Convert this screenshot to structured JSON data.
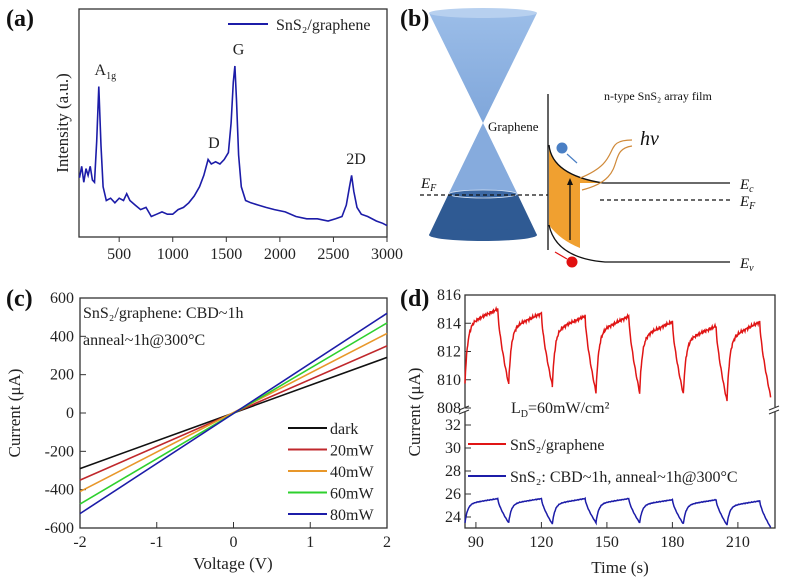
{
  "panels": {
    "a": "(a)",
    "b": "(b)",
    "c": "(c)",
    "d": "(d)"
  },
  "diagram_b": {
    "graphene_label": "Graphene",
    "film_label": "n-type SnS₂ array film",
    "hv_label": "hv",
    "ef_left": {
      "main": "E",
      "sub": "F"
    },
    "ec": {
      "main": "E",
      "sub": "c"
    },
    "ef_right": {
      "main": "E",
      "sub": "F"
    },
    "ev": {
      "main": "E",
      "sub": "v"
    },
    "colors": {
      "cone_light": "#8fb4e3",
      "cone_dark": "#2f5a93",
      "band": "#f0a030",
      "electron": "#4a7fc4",
      "hole": "#e01010",
      "light": "#d08a3a"
    }
  },
  "chart_data": [
    {
      "type": "line",
      "panel": "(a)",
      "xlabel": "",
      "ylabel": "Intensity (a.u.)",
      "xlim": [
        125,
        3000
      ],
      "ylim": [
        0,
        1
      ],
      "xticks": [
        500,
        1000,
        1500,
        2000,
        2500,
        3000
      ],
      "legend": "top-right",
      "series": [
        {
          "name": "SnS₂/graphene",
          "color": "#1c1ca8",
          "x": [
            130,
            150,
            170,
            190,
            210,
            230,
            250,
            270,
            290,
            310,
            330,
            350,
            380,
            420,
            460,
            500,
            540,
            570,
            600,
            650,
            700,
            750,
            800,
            850,
            900,
            950,
            1000,
            1050,
            1100,
            1150,
            1200,
            1250,
            1290,
            1330,
            1360,
            1400,
            1440,
            1480,
            1520,
            1545,
            1565,
            1580,
            1595,
            1615,
            1640,
            1680,
            1730,
            1800,
            1870,
            1950,
            2050,
            2150,
            2250,
            2350,
            2450,
            2520,
            2580,
            2620,
            2650,
            2670,
            2690,
            2720,
            2760,
            2820,
            2900,
            2960,
            3000
          ],
          "y": [
            0.26,
            0.31,
            0.24,
            0.3,
            0.27,
            0.31,
            0.25,
            0.24,
            0.42,
            0.66,
            0.4,
            0.22,
            0.16,
            0.17,
            0.15,
            0.17,
            0.16,
            0.19,
            0.16,
            0.14,
            0.12,
            0.13,
            0.09,
            0.1,
            0.11,
            0.1,
            0.1,
            0.12,
            0.13,
            0.15,
            0.18,
            0.22,
            0.27,
            0.34,
            0.32,
            0.33,
            0.32,
            0.34,
            0.37,
            0.5,
            0.68,
            0.75,
            0.6,
            0.36,
            0.22,
            0.16,
            0.15,
            0.14,
            0.13,
            0.12,
            0.11,
            0.09,
            0.08,
            0.08,
            0.07,
            0.08,
            0.09,
            0.14,
            0.22,
            0.27,
            0.2,
            0.13,
            0.1,
            0.09,
            0.07,
            0.06,
            0.05
          ]
        }
      ],
      "annotations": [
        {
          "text": "A",
          "sub": "1g",
          "x": 270,
          "y": 0.71
        },
        {
          "text": "D",
          "x": 1330,
          "y": 0.39
        },
        {
          "text": "G",
          "x": 1560,
          "y": 0.8
        },
        {
          "text": "2D",
          "x": 2620,
          "y": 0.32
        }
      ]
    },
    {
      "type": "line",
      "panel": "(c)",
      "xlabel": "Voltage (V)",
      "ylabel": "Current (μA)",
      "xlim": [
        -2,
        2
      ],
      "ylim": [
        -600,
        600
      ],
      "xticks": [
        -2,
        -1,
        0,
        1,
        2
      ],
      "yticks": [
        -600,
        -400,
        -200,
        0,
        200,
        400,
        600
      ],
      "legend": "bottom-right",
      "notes": [
        "SnS₂/graphene: CBD~1h",
        "anneal~1h@300°C"
      ],
      "series": [
        {
          "name": "dark",
          "color": "#111111",
          "x": [
            -2,
            2
          ],
          "y": [
            -290,
            290
          ]
        },
        {
          "name": "20mW",
          "color": "#c0282c",
          "x": [
            -2,
            2
          ],
          "y": [
            -350,
            350
          ]
        },
        {
          "name": "40mW",
          "color": "#e8972a",
          "x": [
            -2,
            2
          ],
          "y": [
            -410,
            415
          ]
        },
        {
          "name": "60mW",
          "color": "#2ed02e",
          "x": [
            -2,
            2
          ],
          "y": [
            -475,
            470
          ]
        },
        {
          "name": "80mW",
          "color": "#1c1ca8",
          "x": [
            -2,
            2
          ],
          "y": [
            -525,
            520
          ]
        }
      ]
    },
    {
      "type": "line",
      "panel": "(d)",
      "xlabel": "Time (s)",
      "ylabel": "Current (μA)",
      "xlim": [
        85,
        227
      ],
      "ylim_upper": [
        808,
        816
      ],
      "ylim_lower": [
        23,
        33
      ],
      "xticks": [
        90,
        120,
        150,
        180,
        210
      ],
      "yticks_upper": [
        808,
        810,
        812,
        814,
        816
      ],
      "yticks_lower": [
        24,
        26,
        28,
        30,
        32
      ],
      "legend": "center",
      "legend_title": {
        "main": "L",
        "sub": "D",
        "rest": "=60mW/cm²"
      },
      "series": [
        {
          "name": "SnS₂/graphene",
          "color": "#e01515",
          "axis": "upper",
          "on": [
            85,
            105,
            125,
            145,
            165,
            185,
            205
          ],
          "off": [
            100,
            120,
            140,
            160,
            180,
            200,
            220
          ],
          "min": [
            809.8,
            809.7,
            809.6,
            809.1,
            809.1,
            809.0,
            808.5
          ],
          "max": [
            815.0,
            814.7,
            814.5,
            814.5,
            814.1,
            813.8,
            814.1
          ],
          "end": 808.8
        },
        {
          "name": "SnS₂: CBD~1h, anneal~1h@300°C",
          "color": "#1c1ca8",
          "axis": "lower",
          "on": [
            85,
            105,
            125,
            145,
            165,
            185,
            205
          ],
          "off": [
            100,
            120,
            140,
            160,
            180,
            200,
            220
          ],
          "min": [
            23.5,
            23.5,
            23.4,
            23.5,
            23.5,
            23.4,
            23.3
          ],
          "max": [
            25.6,
            25.6,
            25.6,
            25.6,
            25.5,
            25.5,
            25.4
          ],
          "end": 23.1
        }
      ]
    }
  ]
}
